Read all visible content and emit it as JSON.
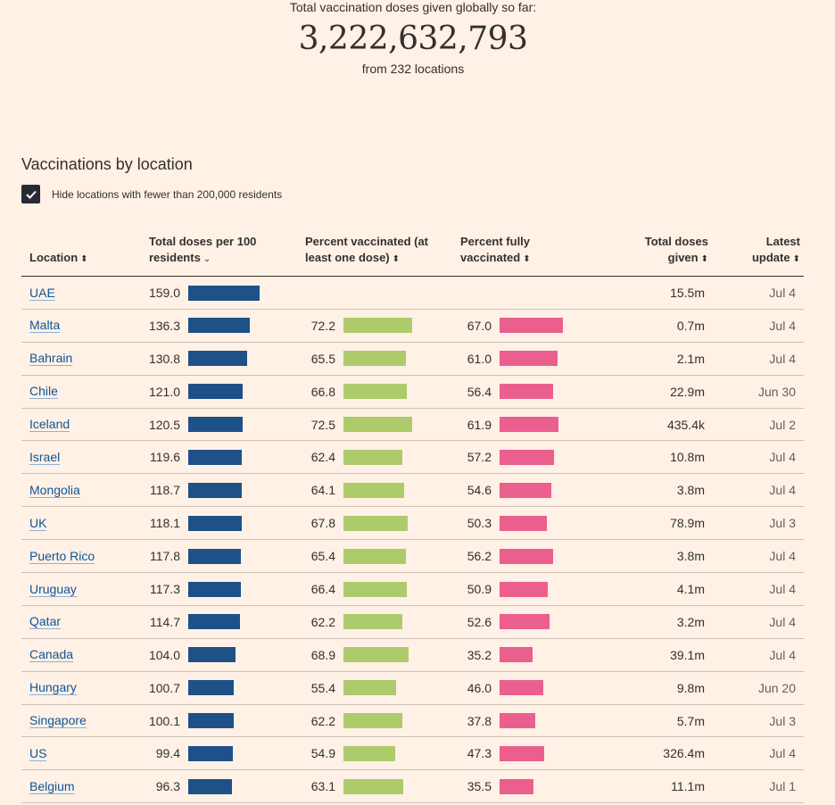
{
  "summary": {
    "label": "Total vaccination doses given globally so far:",
    "total": "3,222,632,793",
    "sub": "from 232 locations"
  },
  "section": {
    "title": "Vaccinations by location",
    "filter_label": "Hide locations with fewer than 200,000 residents",
    "filter_checked": true
  },
  "columns": {
    "location": "Location",
    "doses_line1": "Total doses per 100",
    "doses_line2": "residents",
    "pct_one_line1": "Percent vaccinated (at",
    "pct_one_line2": "least one dose)",
    "pct_full_line1": "Percent fully",
    "pct_full_line2": "vaccinated",
    "total_line1": "Total doses",
    "total_line2": "given",
    "update_line1": "Latest",
    "update_line2": "update"
  },
  "colors": {
    "doses_bar": "#1f5189",
    "one_dose_bar": "#aecb6c",
    "full_bar": "#eb5f8f",
    "background": "#fff1e5"
  },
  "rows": [
    {
      "location": "UAE",
      "doses": "159.0",
      "one": "",
      "full": "",
      "total": "15.5m",
      "update": "Jul 4"
    },
    {
      "location": "Malta",
      "doses": "136.3",
      "one": "72.2",
      "full": "67.0",
      "total": "0.7m",
      "update": "Jul 4"
    },
    {
      "location": "Bahrain",
      "doses": "130.8",
      "one": "65.5",
      "full": "61.0",
      "total": "2.1m",
      "update": "Jul 4"
    },
    {
      "location": "Chile",
      "doses": "121.0",
      "one": "66.8",
      "full": "56.4",
      "total": "22.9m",
      "update": "Jun 30"
    },
    {
      "location": "Iceland",
      "doses": "120.5",
      "one": "72.5",
      "full": "61.9",
      "total": "435.4k",
      "update": "Jul 2"
    },
    {
      "location": "Israel",
      "doses": "119.6",
      "one": "62.4",
      "full": "57.2",
      "total": "10.8m",
      "update": "Jul 4"
    },
    {
      "location": "Mongolia",
      "doses": "118.7",
      "one": "64.1",
      "full": "54.6",
      "total": "3.8m",
      "update": "Jul 4"
    },
    {
      "location": "UK",
      "doses": "118.1",
      "one": "67.8",
      "full": "50.3",
      "total": "78.9m",
      "update": "Jul 3"
    },
    {
      "location": "Puerto Rico",
      "doses": "117.8",
      "one": "65.4",
      "full": "56.2",
      "total": "3.8m",
      "update": "Jul 4"
    },
    {
      "location": "Uruguay",
      "doses": "117.3",
      "one": "66.4",
      "full": "50.9",
      "total": "4.1m",
      "update": "Jul 4"
    },
    {
      "location": "Qatar",
      "doses": "114.7",
      "one": "62.2",
      "full": "52.6",
      "total": "3.2m",
      "update": "Jul 4"
    },
    {
      "location": "Canada",
      "doses": "104.0",
      "one": "68.9",
      "full": "35.2",
      "total": "39.1m",
      "update": "Jul 4"
    },
    {
      "location": "Hungary",
      "doses": "100.7",
      "one": "55.4",
      "full": "46.0",
      "total": "9.8m",
      "update": "Jun 20"
    },
    {
      "location": "Singapore",
      "doses": "100.1",
      "one": "62.2",
      "full": "37.8",
      "total": "5.7m",
      "update": "Jul 3"
    },
    {
      "location": "US",
      "doses": "99.4",
      "one": "54.9",
      "full": "47.3",
      "total": "326.4m",
      "update": "Jul 4"
    },
    {
      "location": "Belgium",
      "doses": "96.3",
      "one": "63.1",
      "full": "35.5",
      "total": "11.1m",
      "update": "Jul 1"
    }
  ]
}
